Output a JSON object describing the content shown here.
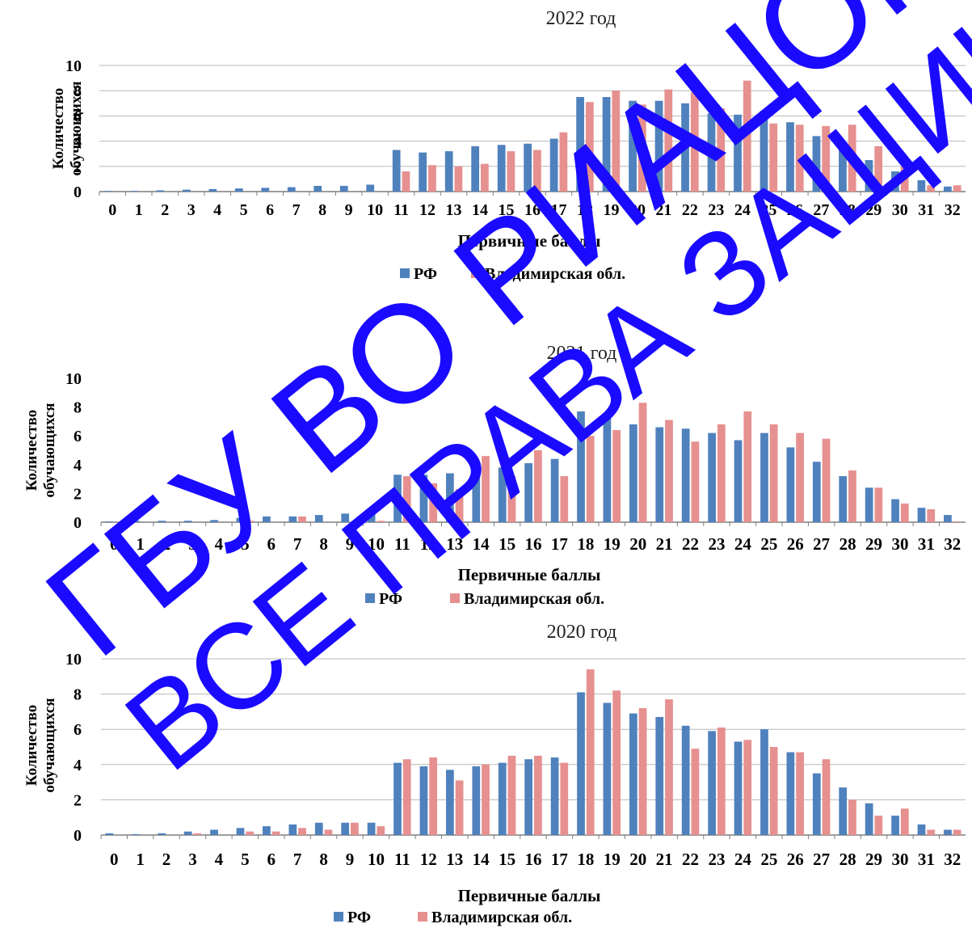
{
  "colors": {
    "rf": "#4F81BD",
    "region": "#E6908F",
    "grid": "#B8B8B8",
    "axis": "#7F7F7F",
    "watermark": "#1A0AFF"
  },
  "watermark": {
    "line1": "ГБУ ВО РИАЦОКО",
    "line2": "ВСЕ ПРАВА ЗАЩИЩЕНЫ"
  },
  "chart_data": [
    {
      "type": "bar",
      "title": "2022 год",
      "xlabel": "Первичные баллы",
      "ylabel": "Количество обучающихся",
      "ylim": [
        0,
        10
      ],
      "yticks": [
        "0",
        "2",
        "4",
        "6",
        "8",
        "10"
      ],
      "grid": true,
      "legend_position": "bottom",
      "categories": [
        "0",
        "1",
        "2",
        "3",
        "4",
        "5",
        "6",
        "7",
        "8",
        "9",
        "10",
        "11",
        "12",
        "13",
        "14",
        "15",
        "16",
        "17",
        "18",
        "19",
        "20",
        "21",
        "22",
        "23",
        "24",
        "25",
        "26",
        "27",
        "28",
        "29",
        "30",
        "31",
        "32"
      ],
      "series": [
        {
          "name": "РФ",
          "values": [
            0.05,
            0.05,
            0.1,
            0.15,
            0.2,
            0.25,
            0.3,
            0.35,
            0.45,
            0.45,
            0.55,
            3.3,
            3.1,
            3.2,
            3.6,
            3.7,
            3.8,
            4.2,
            7.5,
            7.5,
            7.2,
            7.2,
            7.0,
            6.2,
            6.1,
            6.4,
            5.5,
            4.4,
            3.5,
            2.5,
            1.6,
            0.9,
            0.4
          ]
        },
        {
          "name": "Владимирская обл.",
          "values": [
            0,
            0,
            0,
            0,
            0,
            0,
            0,
            0,
            0,
            0,
            0,
            1.6,
            2.1,
            2.0,
            2.2,
            3.2,
            3.3,
            4.7,
            7.1,
            8.0,
            6.9,
            8.1,
            7.9,
            6.6,
            8.8,
            5.4,
            5.3,
            5.2,
            5.3,
            3.6,
            2.0,
            0.5,
            0.5
          ]
        }
      ]
    },
    {
      "type": "bar",
      "title": "2021 год",
      "xlabel": "Первичные баллы",
      "ylabel": "Количество обучающихся",
      "ylim": [
        0,
        10
      ],
      "yticks": [
        "0",
        "2",
        "4",
        "6",
        "8",
        "10"
      ],
      "grid": false,
      "legend_position": "bottom",
      "categories": [
        "0",
        "1",
        "2",
        "3",
        "4",
        "5",
        "6",
        "7",
        "8",
        "9",
        "10",
        "11",
        "12",
        "13",
        "14",
        "15",
        "16",
        "17",
        "18",
        "19",
        "20",
        "21",
        "22",
        "23",
        "24",
        "25",
        "26",
        "27",
        "28",
        "29",
        "30",
        "31",
        "32"
      ],
      "series": [
        {
          "name": "РФ",
          "values": [
            0.05,
            0.1,
            0.1,
            0.1,
            0.15,
            0.3,
            0.4,
            0.4,
            0.5,
            0.6,
            0.6,
            3.3,
            3.3,
            3.4,
            3.5,
            3.8,
            4.1,
            4.4,
            7.7,
            7.2,
            6.8,
            6.6,
            6.5,
            6.2,
            5.7,
            6.2,
            5.2,
            4.2,
            3.2,
            2.4,
            1.6,
            1.0,
            0.5
          ]
        },
        {
          "name": "Владимирская обл.",
          "values": [
            0,
            0,
            0,
            0,
            0,
            0.1,
            0,
            0.4,
            0,
            0,
            0.1,
            3.2,
            2.7,
            2.3,
            4.6,
            3.2,
            5.0,
            3.2,
            6.0,
            6.4,
            8.3,
            7.1,
            5.6,
            6.8,
            7.7,
            6.8,
            6.2,
            5.8,
            3.6,
            2.4,
            1.3,
            0.9,
            0.05
          ]
        }
      ]
    },
    {
      "type": "bar",
      "title": "2020 год",
      "xlabel": "Первичные баллы",
      "ylabel": "Количество обучающихся",
      "ylim": [
        0,
        10
      ],
      "yticks": [
        "0",
        "2",
        "4",
        "6",
        "8",
        "10"
      ],
      "grid": true,
      "legend_position": "bottom",
      "categories": [
        "0",
        "1",
        "2",
        "3",
        "4",
        "5",
        "6",
        "7",
        "8",
        "9",
        "10",
        "11",
        "12",
        "13",
        "14",
        "15",
        "16",
        "17",
        "18",
        "19",
        "20",
        "21",
        "22",
        "23",
        "24",
        "25",
        "26",
        "27",
        "28",
        "29",
        "30",
        "31",
        "32"
      ],
      "series": [
        {
          "name": "РФ",
          "values": [
            0.1,
            0.05,
            0.1,
            0.2,
            0.3,
            0.4,
            0.5,
            0.6,
            0.7,
            0.7,
            0.7,
            4.1,
            3.9,
            3.7,
            3.9,
            4.1,
            4.3,
            4.4,
            8.1,
            7.5,
            6.9,
            6.7,
            6.2,
            5.9,
            5.3,
            6.0,
            4.7,
            3.5,
            2.7,
            1.8,
            1.1,
            0.6,
            0.3
          ]
        },
        {
          "name": "Владимирская обл.",
          "values": [
            0,
            0,
            0,
            0.1,
            0,
            0.2,
            0.2,
            0.4,
            0.3,
            0.7,
            0.5,
            4.3,
            4.4,
            3.1,
            4.0,
            4.5,
            4.5,
            4.1,
            9.4,
            8.2,
            7.2,
            7.7,
            4.9,
            6.1,
            5.4,
            5.0,
            4.7,
            4.3,
            2.0,
            1.1,
            1.5,
            0.3,
            0.3
          ]
        }
      ]
    }
  ]
}
